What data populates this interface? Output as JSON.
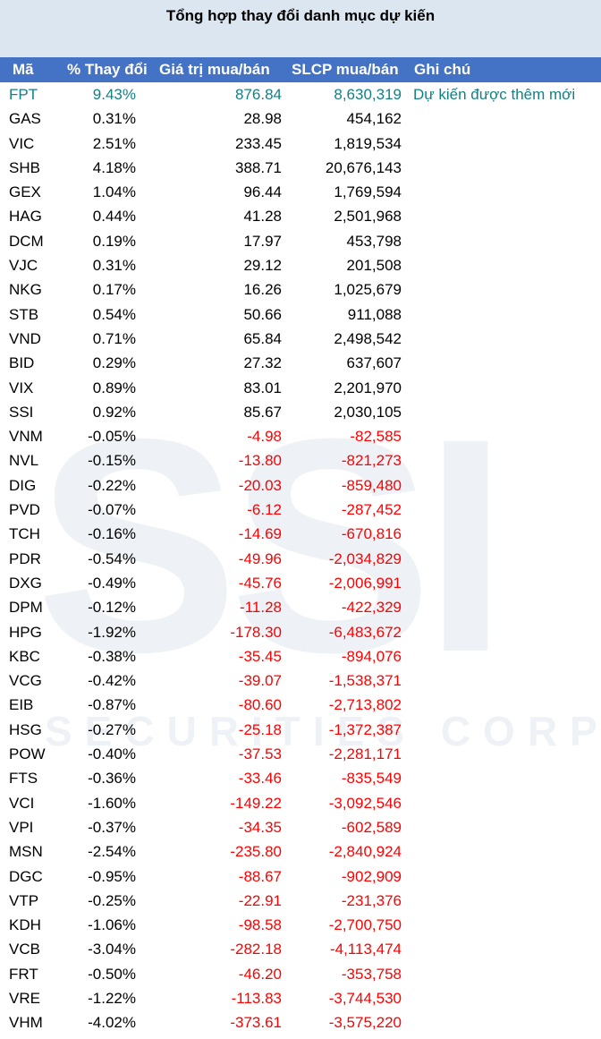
{
  "title": "Tổng hợp thay đổi danh mục dự kiến",
  "watermark": {
    "logo": "SSI",
    "text": "SECURITIES CORP"
  },
  "colors": {
    "header_bg": "#4472c4",
    "title_bg": "#dce6f1",
    "highlight": "#138086",
    "negative": "#ff0000"
  },
  "headers": {
    "ma": "Mã",
    "pct": "% Thay đổi",
    "value": "Giá trị mua/bán",
    "qty": "SLCP mua/bán",
    "note": "Ghi chú"
  },
  "rows": [
    {
      "ma": "FPT",
      "pct": "9.43%",
      "value": "876.84",
      "qty": "8,630,319",
      "note": "Dự kiến được thêm mới"
    },
    {
      "ma": "GAS",
      "pct": "0.31%",
      "value": "28.98",
      "qty": "454,162",
      "note": ""
    },
    {
      "ma": "VIC",
      "pct": "2.51%",
      "value": "233.45",
      "qty": "1,819,534",
      "note": ""
    },
    {
      "ma": "SHB",
      "pct": "4.18%",
      "value": "388.71",
      "qty": "20,676,143",
      "note": ""
    },
    {
      "ma": "GEX",
      "pct": "1.04%",
      "value": "96.44",
      "qty": "1,769,594",
      "note": ""
    },
    {
      "ma": "HAG",
      "pct": "0.44%",
      "value": "41.28",
      "qty": "2,501,968",
      "note": ""
    },
    {
      "ma": "DCM",
      "pct": "0.19%",
      "value": "17.97",
      "qty": "453,798",
      "note": ""
    },
    {
      "ma": "VJC",
      "pct": "0.31%",
      "value": "29.12",
      "qty": "201,508",
      "note": ""
    },
    {
      "ma": "NKG",
      "pct": "0.17%",
      "value": "16.26",
      "qty": "1,025,679",
      "note": ""
    },
    {
      "ma": "STB",
      "pct": "0.54%",
      "value": "50.66",
      "qty": "911,088",
      "note": ""
    },
    {
      "ma": "VND",
      "pct": "0.71%",
      "value": "65.84",
      "qty": "2,498,542",
      "note": ""
    },
    {
      "ma": "BID",
      "pct": "0.29%",
      "value": "27.32",
      "qty": "637,607",
      "note": ""
    },
    {
      "ma": "VIX",
      "pct": "0.89%",
      "value": "83.01",
      "qty": "2,201,970",
      "note": ""
    },
    {
      "ma": "SSI",
      "pct": "0.92%",
      "value": "85.67",
      "qty": "2,030,105",
      "note": ""
    },
    {
      "ma": "VNM",
      "pct": "-0.05%",
      "value": "-4.98",
      "qty": "-82,585",
      "note": ""
    },
    {
      "ma": "NVL",
      "pct": "-0.15%",
      "value": "-13.80",
      "qty": "-821,273",
      "note": ""
    },
    {
      "ma": "DIG",
      "pct": "-0.22%",
      "value": "-20.03",
      "qty": "-859,480",
      "note": ""
    },
    {
      "ma": "PVD",
      "pct": "-0.07%",
      "value": "-6.12",
      "qty": "-287,452",
      "note": ""
    },
    {
      "ma": "TCH",
      "pct": "-0.16%",
      "value": "-14.69",
      "qty": "-670,816",
      "note": ""
    },
    {
      "ma": "PDR",
      "pct": "-0.54%",
      "value": "-49.96",
      "qty": "-2,034,829",
      "note": ""
    },
    {
      "ma": "DXG",
      "pct": "-0.49%",
      "value": "-45.76",
      "qty": "-2,006,991",
      "note": ""
    },
    {
      "ma": "DPM",
      "pct": "-0.12%",
      "value": "-11.28",
      "qty": "-422,329",
      "note": ""
    },
    {
      "ma": "HPG",
      "pct": "-1.92%",
      "value": "-178.30",
      "qty": "-6,483,672",
      "note": ""
    },
    {
      "ma": "KBC",
      "pct": "-0.38%",
      "value": "-35.45",
      "qty": "-894,076",
      "note": ""
    },
    {
      "ma": "VCG",
      "pct": "-0.42%",
      "value": "-39.07",
      "qty": "-1,538,371",
      "note": ""
    },
    {
      "ma": "EIB",
      "pct": "-0.87%",
      "value": "-80.60",
      "qty": "-2,713,802",
      "note": ""
    },
    {
      "ma": "HSG",
      "pct": "-0.27%",
      "value": "-25.18",
      "qty": "-1,372,387",
      "note": ""
    },
    {
      "ma": "POW",
      "pct": "-0.40%",
      "value": "-37.53",
      "qty": "-2,281,171",
      "note": ""
    },
    {
      "ma": "FTS",
      "pct": "-0.36%",
      "value": "-33.46",
      "qty": "-835,549",
      "note": ""
    },
    {
      "ma": "VCI",
      "pct": "-1.60%",
      "value": "-149.22",
      "qty": "-3,092,546",
      "note": ""
    },
    {
      "ma": "VPI",
      "pct": "-0.37%",
      "value": "-34.35",
      "qty": "-602,589",
      "note": ""
    },
    {
      "ma": "MSN",
      "pct": "-2.54%",
      "value": "-235.80",
      "qty": "-2,840,924",
      "note": ""
    },
    {
      "ma": "DGC",
      "pct": "-0.95%",
      "value": "-88.67",
      "qty": "-902,909",
      "note": ""
    },
    {
      "ma": "VTP",
      "pct": "-0.25%",
      "value": "-22.91",
      "qty": "-231,376",
      "note": ""
    },
    {
      "ma": "KDH",
      "pct": "-1.06%",
      "value": "-98.58",
      "qty": "-2,700,750",
      "note": ""
    },
    {
      "ma": "VCB",
      "pct": "-3.04%",
      "value": "-282.18",
      "qty": "-4,113,474",
      "note": ""
    },
    {
      "ma": "FRT",
      "pct": "-0.50%",
      "value": "-46.20",
      "qty": "-353,758",
      "note": ""
    },
    {
      "ma": "VRE",
      "pct": "-1.22%",
      "value": "-113.83",
      "qty": "-3,744,530",
      "note": ""
    },
    {
      "ma": "VHM",
      "pct": "-4.02%",
      "value": "-373.61",
      "qty": "-3,575,220",
      "note": ""
    }
  ]
}
